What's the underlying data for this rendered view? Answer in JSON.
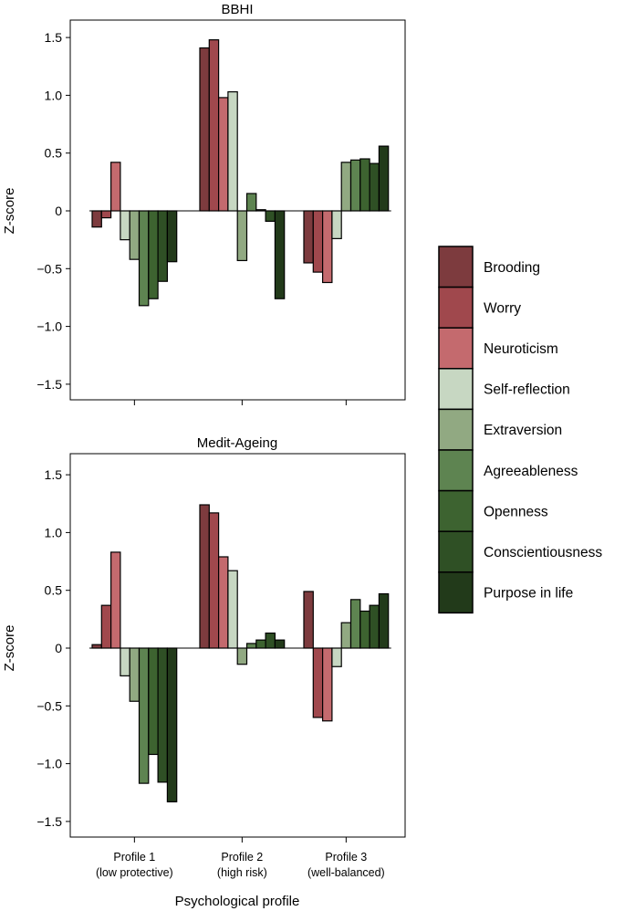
{
  "chart_data": [
    {
      "type": "bar",
      "title": "BBHI",
      "ylabel": "Z-score",
      "xlabel": "",
      "ylim": [
        -1.7,
        1.7
      ],
      "yticks": [
        1.5,
        1.0,
        0.5,
        0,
        -0.5,
        -1.0,
        -1.5
      ],
      "ytick_labels": [
        "1.5",
        "1.0",
        "0.5",
        "0",
        "−0.5",
        "−1.0",
        "−1.5"
      ],
      "categories": [
        "Profile 1",
        "Profile 2",
        "Profile 3"
      ],
      "series": [
        {
          "name": "Brooding",
          "values": [
            -0.14,
            1.41,
            -0.45
          ]
        },
        {
          "name": "Worry",
          "values": [
            -0.06,
            1.48,
            -0.53
          ]
        },
        {
          "name": "Neuroticism",
          "values": [
            0.42,
            0.98,
            -0.62
          ]
        },
        {
          "name": "Self-reflection",
          "values": [
            -0.25,
            1.03,
            -0.24
          ]
        },
        {
          "name": "Extraversion",
          "values": [
            -0.42,
            -0.43,
            0.42
          ]
        },
        {
          "name": "Agreeableness",
          "values": [
            -0.82,
            0.15,
            0.44
          ]
        },
        {
          "name": "Openness",
          "values": [
            -0.76,
            0.01,
            0.45
          ]
        },
        {
          "name": "Conscientiousness",
          "values": [
            -0.61,
            -0.09,
            0.41
          ]
        },
        {
          "name": "Purpose in life",
          "values": [
            -0.44,
            -0.76,
            0.56
          ]
        }
      ]
    },
    {
      "type": "bar",
      "title": "Medit-Ageing",
      "ylabel": "Z-score",
      "xlabel": "Psychological profile",
      "ylim": [
        -1.7,
        1.7
      ],
      "yticks": [
        1.5,
        1.0,
        0.5,
        0,
        -0.5,
        -1.0,
        -1.5
      ],
      "ytick_labels": [
        "1.5",
        "1.0",
        "0.5",
        "0",
        "−0.5",
        "−1.0",
        "−1.5"
      ],
      "categories": [
        "Profile 1",
        "Profile 2",
        "Profile 3"
      ],
      "category_sublabels": [
        "(low protective)",
        "(high risk)",
        "(well-balanced)"
      ],
      "series": [
        {
          "name": "Brooding",
          "values": [
            0.03,
            1.24,
            0.49
          ]
        },
        {
          "name": "Worry",
          "values": [
            0.37,
            1.17,
            -0.6
          ]
        },
        {
          "name": "Neuroticism",
          "values": [
            0.83,
            0.79,
            -0.63
          ]
        },
        {
          "name": "Self-reflection",
          "values": [
            -0.24,
            0.67,
            -0.16
          ]
        },
        {
          "name": "Extraversion",
          "values": [
            -0.46,
            -0.14,
            0.22
          ]
        },
        {
          "name": "Agreeableness",
          "values": [
            -1.17,
            0.04,
            0.42
          ]
        },
        {
          "name": "Openness",
          "values": [
            -0.92,
            0.07,
            0.32
          ]
        },
        {
          "name": "Conscientiousness",
          "values": [
            -1.16,
            0.13,
            0.37
          ]
        },
        {
          "name": "Purpose in life",
          "values": [
            -1.33,
            0.07,
            0.47
          ]
        }
      ]
    }
  ],
  "legend": {
    "position": "right",
    "items": [
      {
        "label": "Brooding",
        "color": "#7d3b3e"
      },
      {
        "label": "Worry",
        "color": "#a0484d"
      },
      {
        "label": "Neuroticism",
        "color": "#c46a6e"
      },
      {
        "label": "Self-reflection",
        "color": "#c7d7c2"
      },
      {
        "label": "Extraversion",
        "color": "#91a982"
      },
      {
        "label": "Agreeableness",
        "color": "#5e8451"
      },
      {
        "label": "Openness",
        "color": "#3d6330"
      },
      {
        "label": "Conscientiousness",
        "color": "#2f5025"
      },
      {
        "label": "Purpose in life",
        "color": "#223a1a"
      }
    ]
  }
}
